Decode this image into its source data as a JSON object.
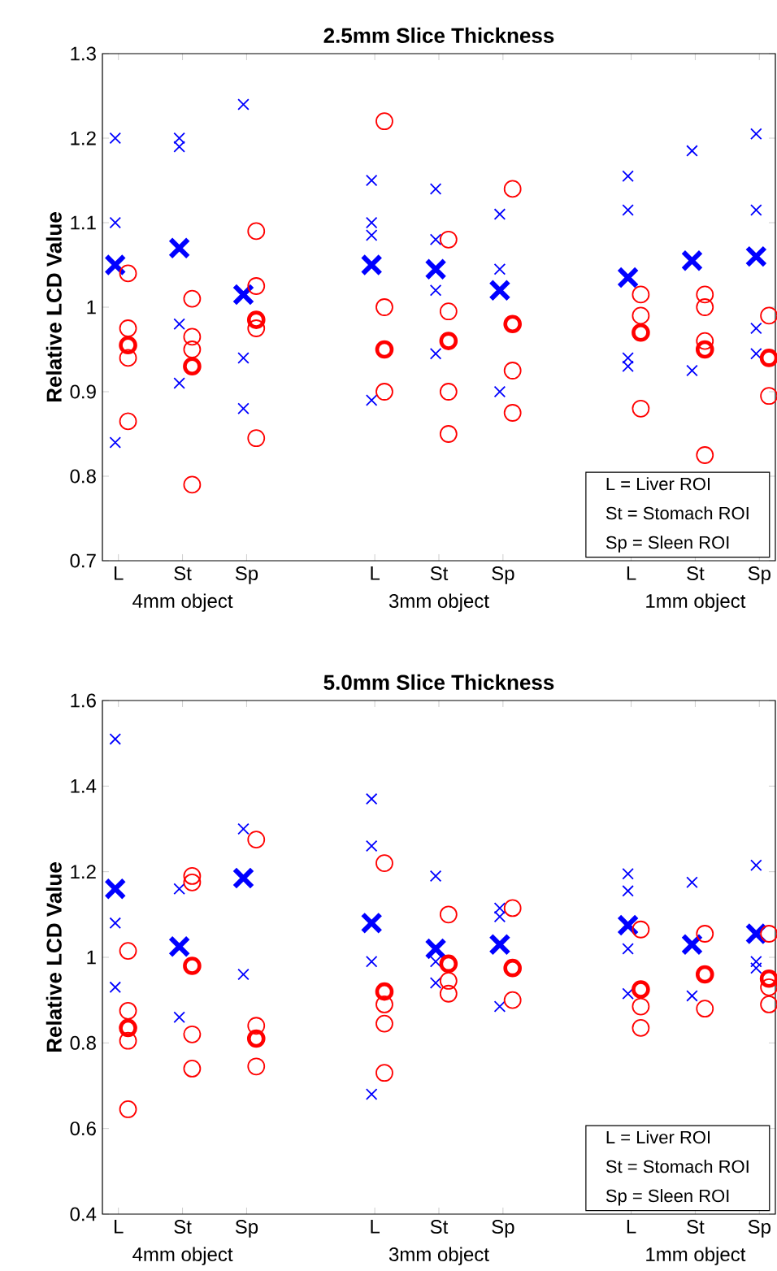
{
  "chart_data": [
    {
      "type": "scatter",
      "title": "2.5mm Slice Thickness",
      "ylabel": "Relative LCD Value",
      "categories": [
        "L",
        "St",
        "Sp",
        null,
        "L",
        "St",
        "Sp",
        null,
        "L",
        "St",
        "Sp"
      ],
      "ylim": [
        0.7,
        1.3
      ],
      "yticks": [
        0.7,
        0.8,
        0.9,
        1,
        1.1,
        1.2,
        1.3
      ],
      "annotations": [
        "4mm object",
        "3mm object",
        "1mm object",
        "L  = Liver ROI",
        "St = Stomach ROI",
        "Sp = Sleen ROI"
      ],
      "series": [
        {
          "color": "#0000ff",
          "marker": "cross",
          "values": [
            1.2,
            1.2,
            1.24,
            null,
            1.15,
            1.14,
            1.11,
            null,
            1.155,
            1.185,
            1.205
          ]
        },
        {
          "color": "#0000ff",
          "marker": "cross",
          "values": [
            1.1,
            1.19,
            0.94,
            null,
            1.1,
            1.08,
            1.045,
            null,
            1.115,
            0.925,
            1.115
          ]
        },
        {
          "color": "#0000ff",
          "marker": "cross",
          "values": [
            0.84,
            0.98,
            0.88,
            null,
            1.085,
            1.02,
            0.9,
            null,
            0.94,
            null,
            0.975
          ]
        },
        {
          "color": "#0000ff",
          "marker": "cross",
          "values": [
            null,
            0.91,
            null,
            null,
            0.89,
            0.945,
            null,
            null,
            0.93,
            null,
            0.945
          ]
        },
        {
          "color": "#0000ff",
          "marker": "cross",
          "values": [
            1.05,
            1.07,
            1.015,
            null,
            1.05,
            1.045,
            1.02,
            null,
            1.035,
            1.055,
            1.06
          ]
        },
        {
          "color": "#ff0000",
          "marker": "circle",
          "values": [
            1.04,
            1.01,
            1.09,
            null,
            1.22,
            1.08,
            1.14,
            null,
            1.015,
            1.015,
            0.99
          ]
        },
        {
          "color": "#ff0000",
          "marker": "circle",
          "values": [
            0.975,
            0.965,
            1.025,
            null,
            1.0,
            0.995,
            0.925,
            null,
            0.99,
            1.0,
            0.895
          ]
        },
        {
          "color": "#ff0000",
          "marker": "circle",
          "values": [
            0.94,
            0.95,
            0.975,
            null,
            0.9,
            0.9,
            0.875,
            null,
            0.88,
            0.96,
            null
          ]
        },
        {
          "color": "#ff0000",
          "marker": "circle",
          "values": [
            0.865,
            0.79,
            0.845,
            null,
            null,
            0.85,
            null,
            null,
            null,
            0.825,
            null
          ]
        },
        {
          "color": "#ff0000",
          "marker": "circle",
          "values": [
            0.955,
            0.93,
            0.985,
            null,
            0.95,
            0.96,
            0.98,
            null,
            0.97,
            0.95,
            0.94
          ]
        }
      ]
    },
    {
      "type": "scatter",
      "title": "5.0mm Slice Thickness",
      "ylabel": "Relative LCD Value",
      "categories": [
        "L",
        "St",
        "Sp",
        null,
        "L",
        "St",
        "Sp",
        null,
        "L",
        "St",
        "Sp"
      ],
      "ylim": [
        0.4,
        1.6
      ],
      "yticks": [
        0.4,
        0.6,
        0.8,
        1,
        1.2,
        1.4,
        1.6
      ],
      "annotations": [
        "4mm object",
        "3mm object",
        "1mm object",
        "L  = Liver ROI",
        "St = Stomach ROI",
        "Sp = Sleen ROI"
      ],
      "series": [
        {
          "color": "#0000ff",
          "marker": "cross",
          "values": [
            1.51,
            1.16,
            1.3,
            null,
            1.37,
            1.19,
            1.115,
            null,
            1.195,
            1.175,
            1.215
          ]
        },
        {
          "color": "#0000ff",
          "marker": "cross",
          "values": [
            1.08,
            0.86,
            0.96,
            null,
            1.26,
            0.99,
            1.095,
            null,
            1.155,
            0.91,
            0.99
          ]
        },
        {
          "color": "#0000ff",
          "marker": "cross",
          "values": [
            0.93,
            null,
            null,
            null,
            0.99,
            0.94,
            0.885,
            null,
            1.02,
            null,
            0.975
          ]
        },
        {
          "color": "#0000ff",
          "marker": "cross",
          "values": [
            null,
            null,
            null,
            null,
            0.68,
            null,
            null,
            null,
            0.915,
            null,
            null
          ]
        },
        {
          "color": "#0000ff",
          "marker": "cross",
          "values": [
            1.16,
            1.025,
            1.185,
            null,
            1.08,
            1.02,
            1.03,
            null,
            1.075,
            1.03,
            1.055
          ]
        },
        {
          "color": "#ff0000",
          "marker": "circle",
          "values": [
            1.015,
            1.19,
            1.275,
            null,
            1.22,
            1.1,
            1.115,
            null,
            1.065,
            1.055,
            1.055
          ]
        },
        {
          "color": "#ff0000",
          "marker": "circle",
          "values": [
            0.875,
            1.175,
            0.84,
            null,
            0.89,
            0.945,
            0.9,
            null,
            0.885,
            0.88,
            0.93
          ]
        },
        {
          "color": "#ff0000",
          "marker": "circle",
          "values": [
            0.805,
            0.82,
            0.745,
            null,
            0.845,
            0.915,
            null,
            null,
            0.835,
            null,
            0.89
          ]
        },
        {
          "color": "#ff0000",
          "marker": "circle",
          "values": [
            0.645,
            0.74,
            null,
            null,
            0.73,
            null,
            null,
            null,
            null,
            null,
            null
          ]
        },
        {
          "color": "#ff0000",
          "marker": "circle",
          "values": [
            0.835,
            0.98,
            0.81,
            null,
            0.92,
            0.985,
            0.975,
            null,
            0.925,
            0.96,
            0.95
          ]
        }
      ]
    }
  ]
}
